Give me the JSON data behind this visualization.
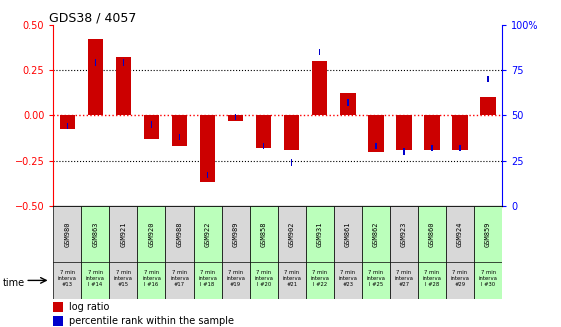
{
  "title": "GDS38 / 4057",
  "samples": [
    "GSM980",
    "GSM863",
    "GSM921",
    "GSM920",
    "GSM988",
    "GSM922",
    "GSM989",
    "GSM858",
    "GSM902",
    "GSM931",
    "GSM861",
    "GSM862",
    "GSM923",
    "GSM860",
    "GSM924",
    "GSM859"
  ],
  "intervals": [
    "#13",
    "I #14",
    "#15",
    "I #16",
    "#17",
    "I #18",
    "#19",
    "I #20",
    "#21",
    "I #22",
    "#23",
    "I #25",
    "#27",
    "I #28",
    "#29",
    "I #30"
  ],
  "log_ratio": [
    -0.075,
    0.42,
    0.32,
    -0.13,
    -0.17,
    -0.37,
    -0.03,
    -0.18,
    -0.19,
    0.3,
    0.12,
    -0.2,
    -0.19,
    -0.19,
    -0.19,
    0.1
  ],
  "percentile": [
    44,
    79,
    79,
    45,
    38,
    17,
    49,
    33,
    24,
    85,
    57,
    33,
    30,
    32,
    32,
    70
  ],
  "bar_color": "#cc0000",
  "pct_color": "#0000cc",
  "bg_color_gray": "#d8d8d8",
  "bg_color_green": "#bbffbb",
  "ylim": [
    -0.5,
    0.5
  ],
  "y2lim": [
    0,
    100
  ],
  "yticks": [
    -0.5,
    -0.25,
    0,
    0.25,
    0.5
  ],
  "y2ticks": [
    0,
    25,
    50,
    75,
    100
  ],
  "bar_width": 0.55,
  "pct_square_size": 0.035
}
